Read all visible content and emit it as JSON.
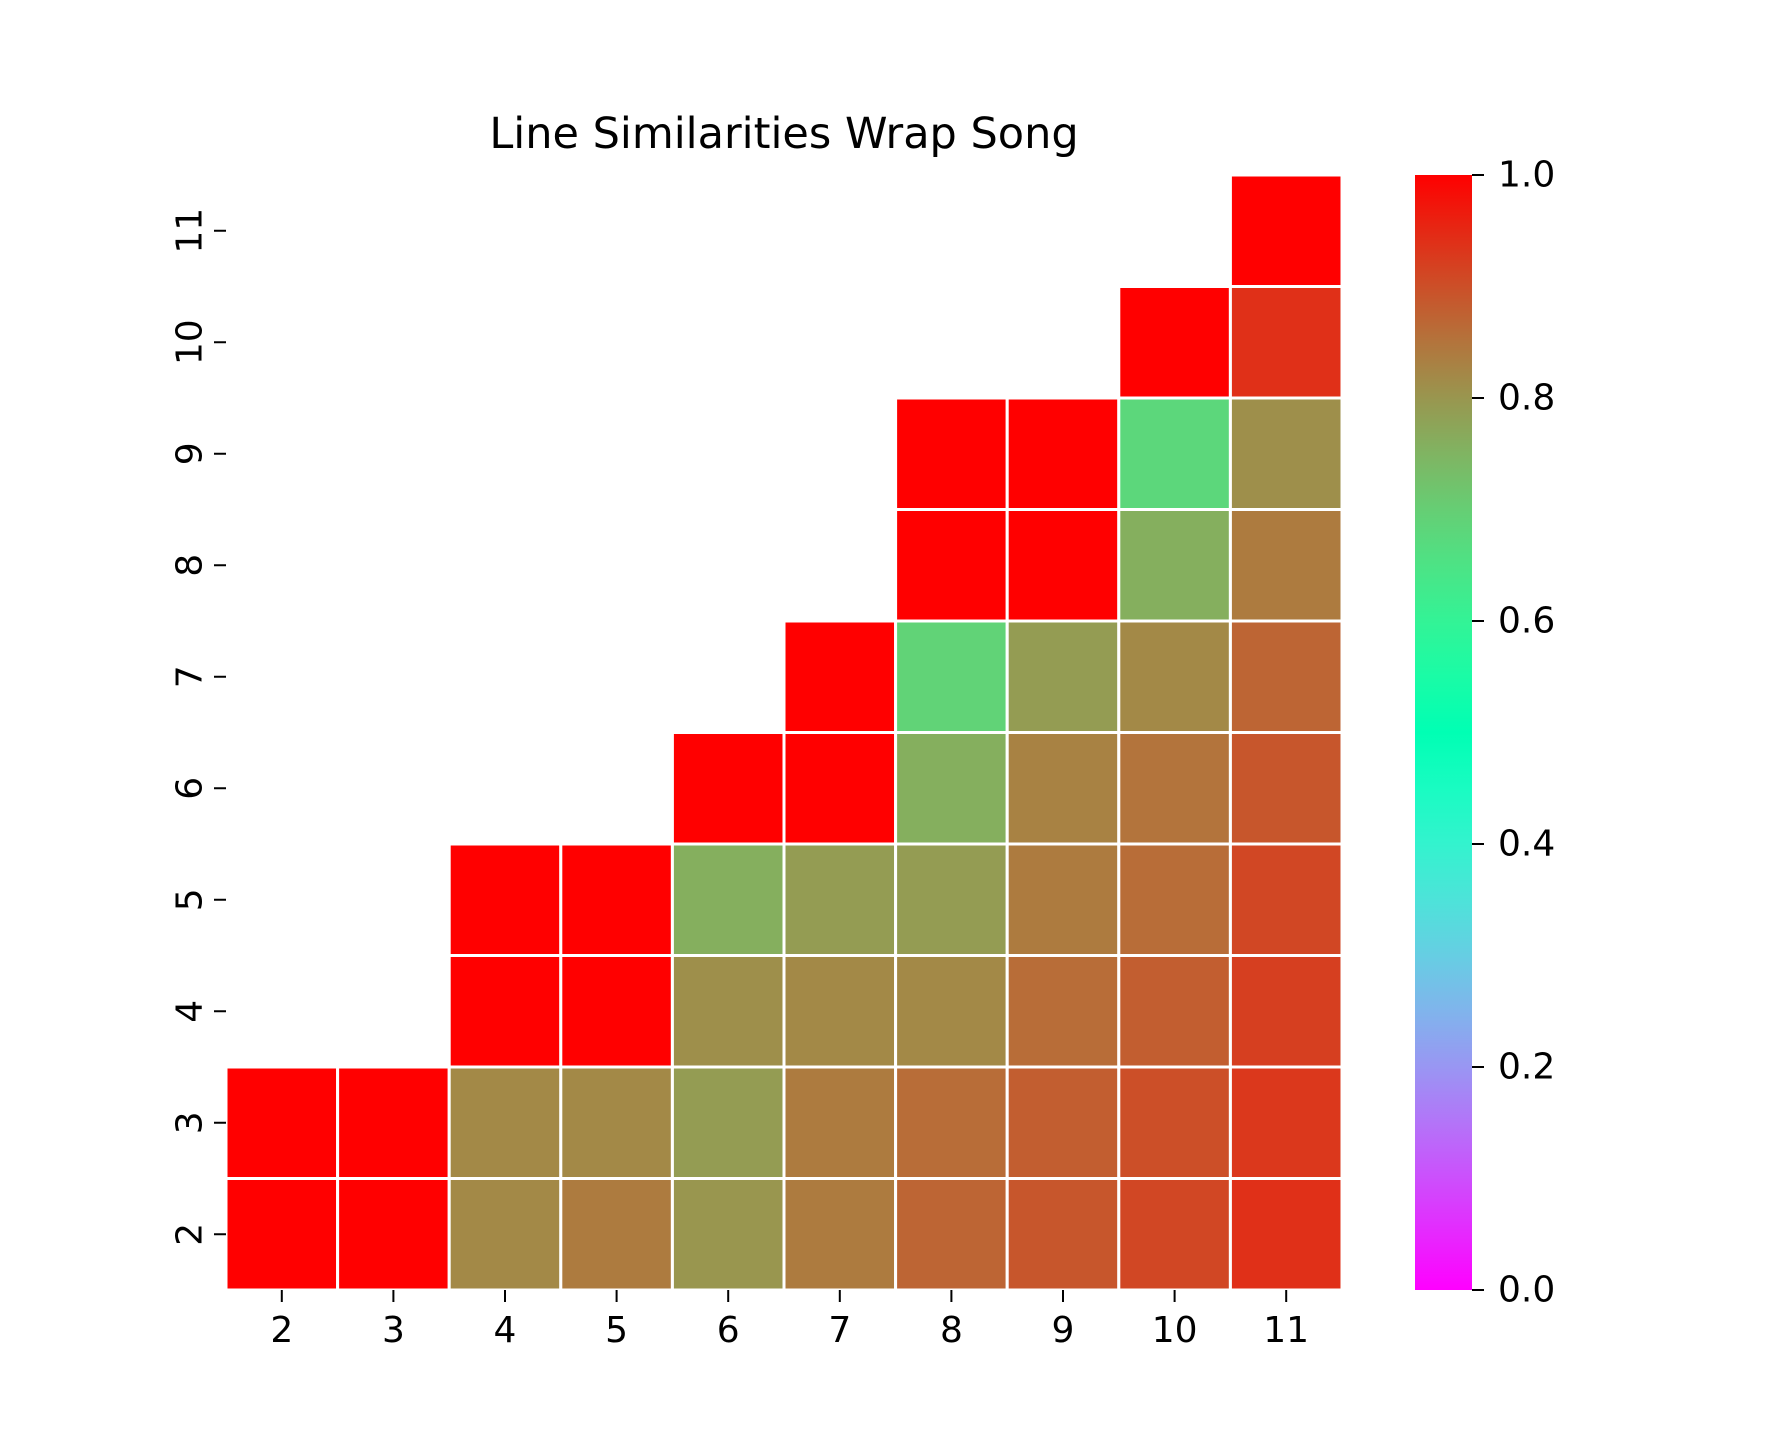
{
  "chart_data": {
    "type": "heatmap",
    "title": "Line Similarities Wrap Song",
    "xlabel": "",
    "ylabel": "",
    "x_categories": [
      "2",
      "3",
      "4",
      "5",
      "6",
      "7",
      "8",
      "9",
      "10",
      "11"
    ],
    "y_categories": [
      "2",
      "3",
      "4",
      "5",
      "6",
      "7",
      "8",
      "9",
      "10",
      "11"
    ],
    "mask": "lower-left triangle hidden (cells where column < row are blank)",
    "colormap": "rainbow",
    "vmin": 0.0,
    "vmax": 1.0,
    "grid_line_color": "#ffffff",
    "values": [
      [
        1.0,
        1.0,
        0.82,
        0.84,
        0.8,
        0.84,
        0.87,
        0.89,
        0.91,
        0.94
      ],
      [
        1.0,
        1.0,
        0.82,
        0.82,
        0.79,
        0.84,
        0.86,
        0.88,
        0.9,
        0.93
      ],
      [
        null,
        null,
        1.0,
        1.0,
        0.81,
        0.82,
        0.82,
        0.86,
        0.88,
        0.92
      ],
      [
        null,
        null,
        1.0,
        1.0,
        0.76,
        0.79,
        0.79,
        0.84,
        0.86,
        0.91
      ],
      [
        null,
        null,
        null,
        null,
        1.0,
        1.0,
        0.76,
        0.83,
        0.85,
        0.89
      ],
      [
        null,
        null,
        null,
        null,
        null,
        1.0,
        0.69,
        0.79,
        0.82,
        0.87
      ],
      [
        null,
        null,
        null,
        null,
        null,
        null,
        1.0,
        1.0,
        0.76,
        0.84
      ],
      [
        null,
        null,
        null,
        null,
        null,
        null,
        1.0,
        1.0,
        0.68,
        0.81
      ],
      [
        null,
        null,
        null,
        null,
        null,
        null,
        null,
        null,
        1.0,
        0.94
      ],
      [
        null,
        null,
        null,
        null,
        null,
        null,
        null,
        null,
        null,
        1.0
      ]
    ],
    "colorbar": {
      "ticks": [
        "0.0",
        "0.2",
        "0.4",
        "0.6",
        "0.8",
        "1.0"
      ],
      "tick_values": [
        0.0,
        0.2,
        0.4,
        0.6,
        0.8,
        1.0
      ]
    },
    "grid": false,
    "legend": "colorbar-right"
  }
}
